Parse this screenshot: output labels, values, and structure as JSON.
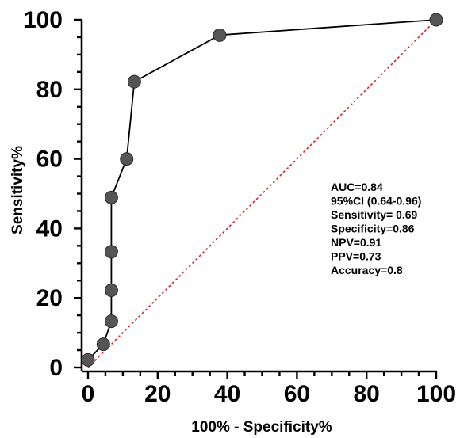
{
  "chart_data": {
    "type": "line",
    "title": "",
    "xlabel": "100% - Specificity%",
    "ylabel": "Sensitivity%",
    "xlim": [
      0,
      100
    ],
    "ylim": [
      0,
      100
    ],
    "x_ticks": [
      0,
      20,
      40,
      60,
      80,
      100
    ],
    "y_ticks": [
      0,
      20,
      40,
      60,
      80,
      100
    ],
    "grid": false,
    "legend": "none",
    "series": [
      {
        "x": [
          0,
          4.4,
          6.7,
          6.7,
          6.7,
          6.7,
          11.1,
          13.3,
          37.8,
          100
        ],
        "y": [
          2.2,
          6.7,
          13.3,
          22.2,
          33.3,
          48.9,
          60.0,
          82.2,
          95.6,
          100
        ],
        "color": "#000000",
        "marker_color": "#555555"
      }
    ],
    "reference_line": {
      "x": [
        0,
        100
      ],
      "y": [
        0,
        100
      ],
      "color": "#d62828",
      "style": "dotted"
    },
    "annotations": [
      "AUC=0.84",
      "95%CI (0.64-0.96)",
      "Sensitivity= 0.69",
      "Specificity=0.86",
      "NPV=0.91",
      "PPV=0.73",
      "Accuracy=0.8"
    ]
  }
}
